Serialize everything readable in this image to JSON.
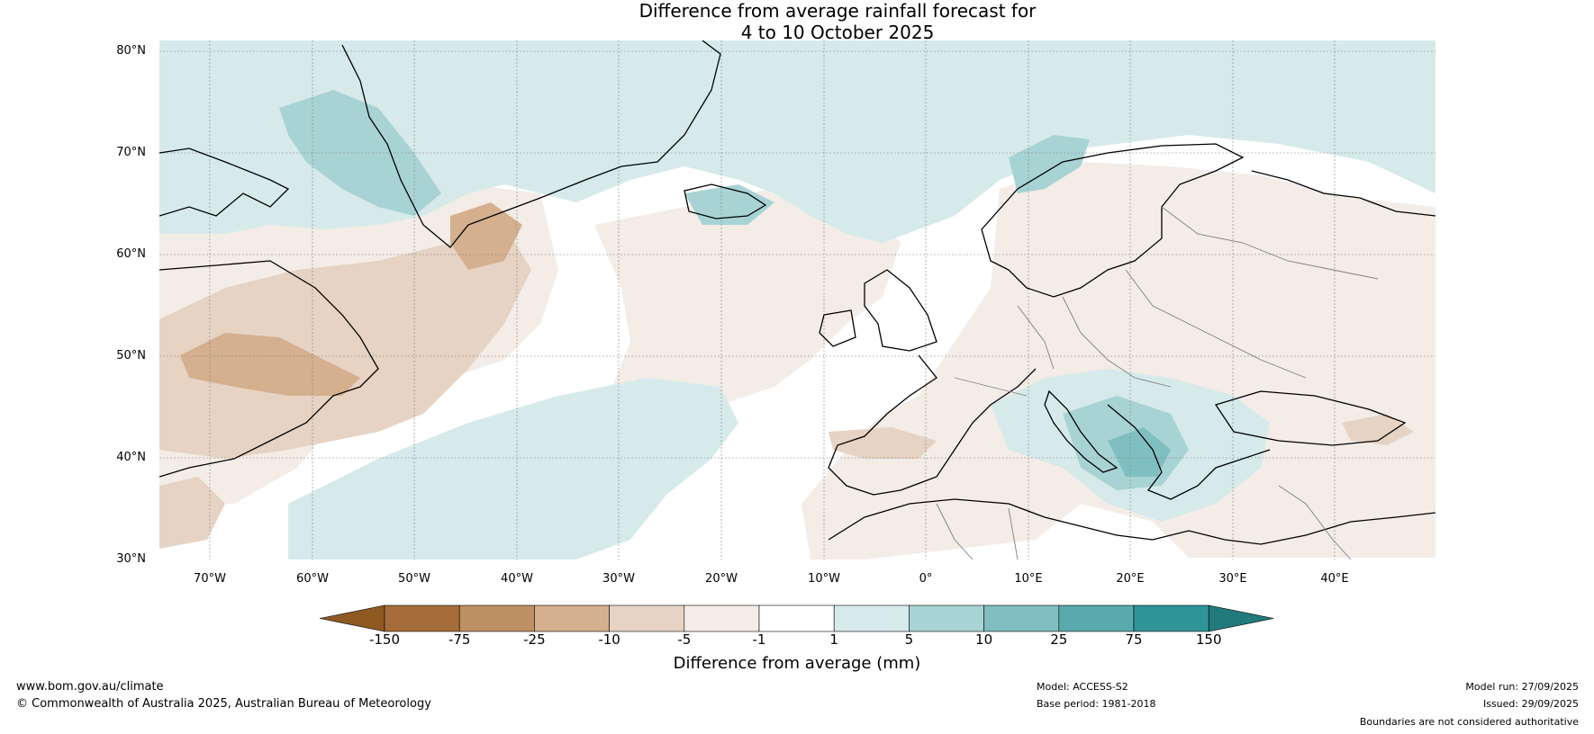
{
  "title": {
    "line1": "Difference from average rainfall forecast for",
    "line2": "4 to 10 October 2025"
  },
  "map": {
    "lat_labels": [
      "80°N",
      "70°N",
      "60°N",
      "50°N",
      "40°N",
      "30°N"
    ],
    "lon_labels": [
      "70°W",
      "60°W",
      "50°W",
      "40°W",
      "30°W",
      "20°W",
      "10°W",
      "0°",
      "10°E",
      "20°E",
      "30°E",
      "40°E"
    ],
    "colors": {
      "ocean_default": "#ffffff",
      "gridline": "#808080",
      "coastline": "#000000",
      "border": "#808080"
    }
  },
  "colorbar": {
    "ticks": [
      "-150",
      "-75",
      "-25",
      "-10",
      "-5",
      "-1",
      "1",
      "5",
      "10",
      "25",
      "75",
      "150"
    ],
    "colors": [
      "#8f5a22",
      "#a66d3a",
      "#bf8f64",
      "#d4b08e",
      "#e6d3c3",
      "#f3ece7",
      "#ffffff",
      "#d6eaea",
      "#a8d3d4",
      "#80bfc1",
      "#5aaaad",
      "#2f9598",
      "#237a7d"
    ],
    "label": "Difference from average (mm)"
  },
  "footer": {
    "website": "www.bom.gov.au/climate",
    "copyright": "© Commonwealth of Australia 2025, Australian Bureau of Meteorology",
    "model": "Model: ACCESS-S2",
    "base_period": "Base period: 1981-2018",
    "model_run": "Model run: 27/09/2025",
    "issued": "Issued: 29/09/2025",
    "disclaimer": "Boundaries are not considered authoritative"
  }
}
